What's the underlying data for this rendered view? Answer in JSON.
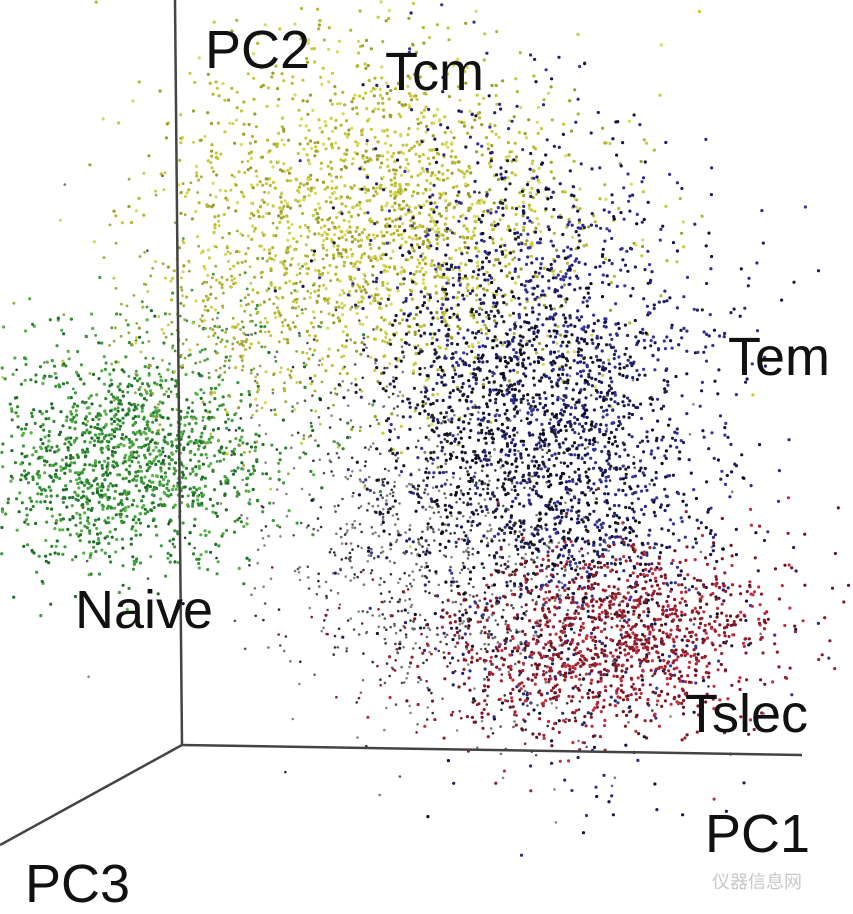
{
  "axes": {
    "x": "PC1",
    "y": "PC2",
    "z": "PC3"
  },
  "clusters": [
    {
      "label": "Tcm"
    },
    {
      "label": "Tem"
    },
    {
      "label": "Naive"
    },
    {
      "label": "Tslec"
    }
  ],
  "watermark": "仪器信息网"
}
